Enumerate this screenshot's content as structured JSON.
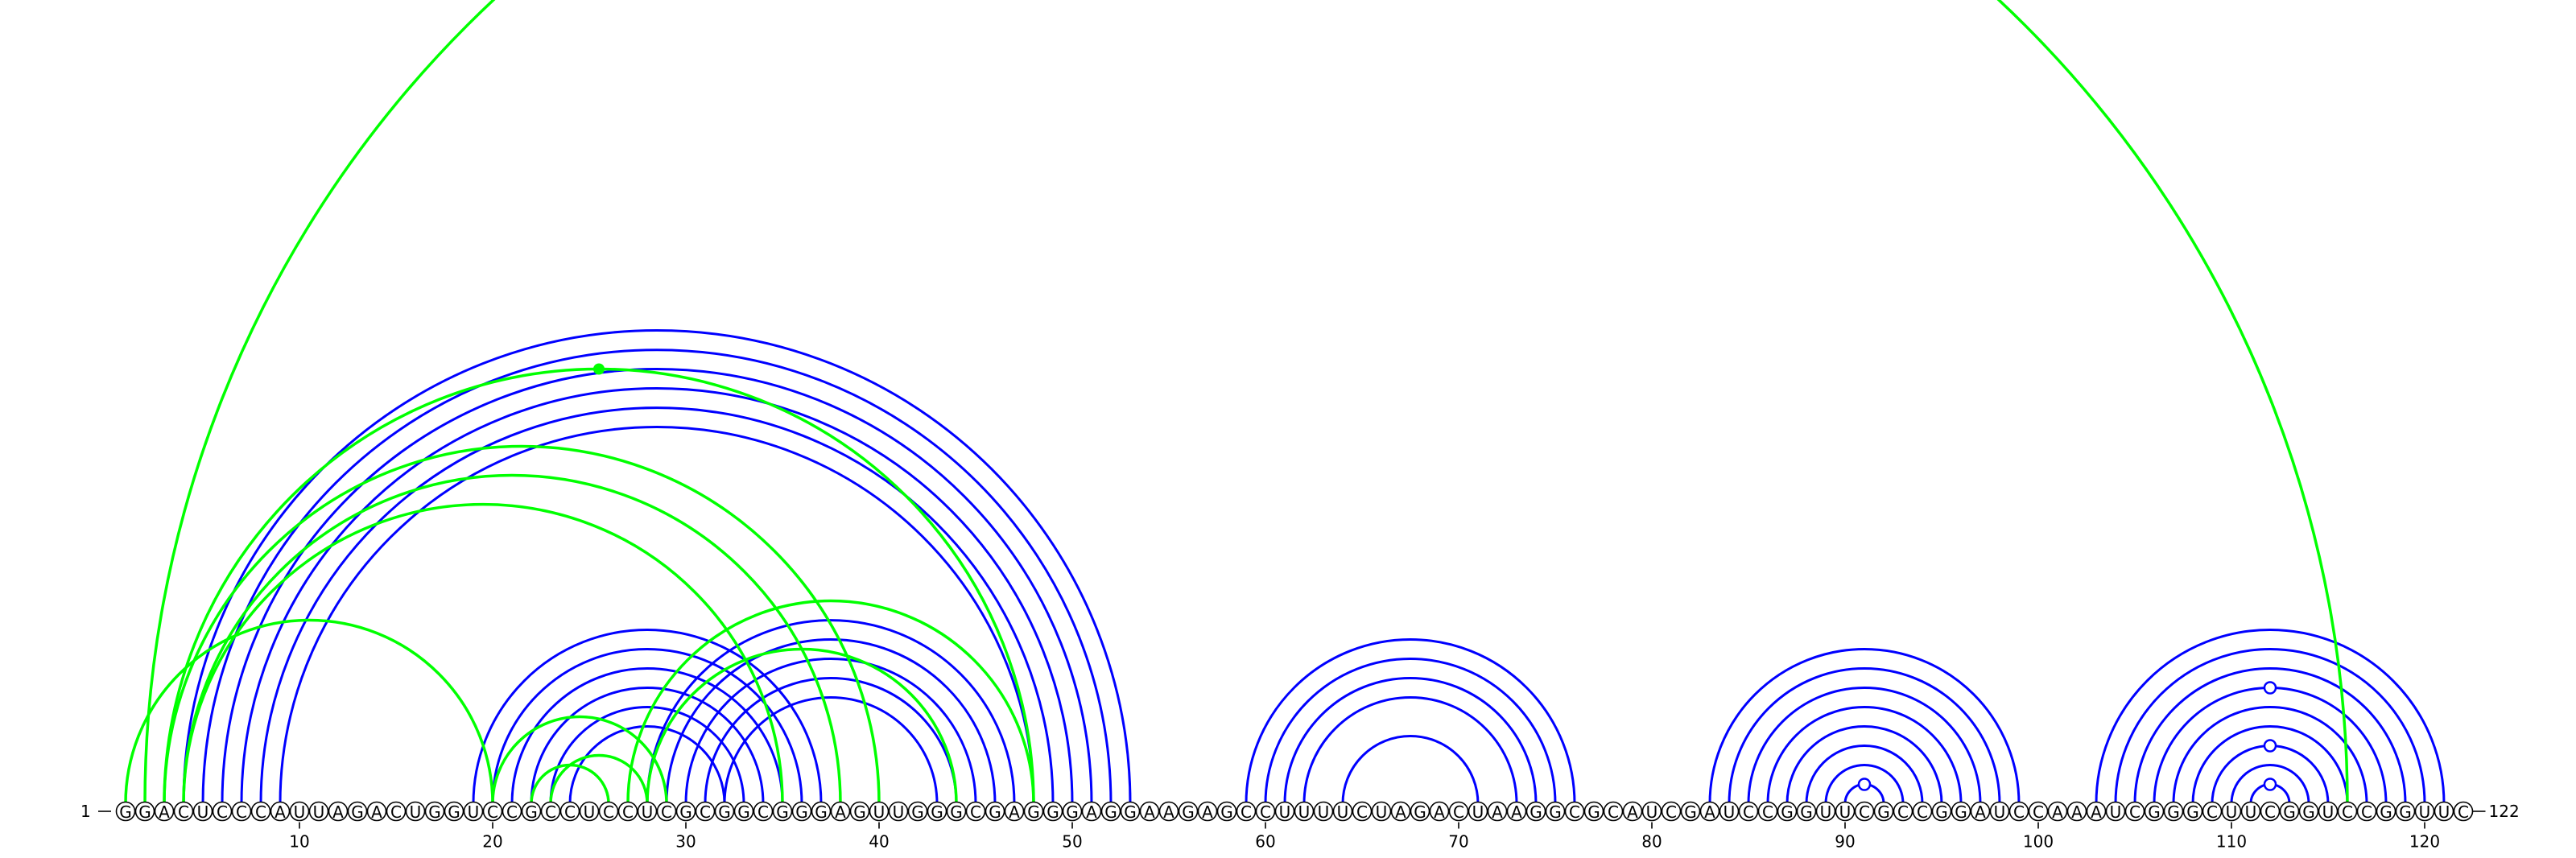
{
  "diagram": {
    "sequence": "GGACUCCCAUUAGACUGGUCCGCCUCCUCGCGGCGGGAGUUGGGCGAGGGAGGAAGAGCCUUUUCUAGACUAAGGCGCAUCGAUCCGGUUCGCCGGAUCCAAAUCGGGCUUCGGUCCGGUUC",
    "start_label": "1",
    "end_label": "122",
    "ticks": [
      10,
      20,
      30,
      40,
      50,
      60,
      70,
      80,
      90,
      100,
      110,
      120
    ],
    "colors": {
      "pair_arc": "#0000ff",
      "alt_arc": "#00ff00",
      "nucleotide_outline": "#000000"
    },
    "blue_pairs": [
      [
        4,
        53
      ],
      [
        5,
        52
      ],
      [
        6,
        51
      ],
      [
        7,
        50
      ],
      [
        8,
        49
      ],
      [
        9,
        48
      ],
      [
        19,
        37
      ],
      [
        20,
        36
      ],
      [
        21,
        35
      ],
      [
        22,
        34
      ],
      [
        23,
        33
      ],
      [
        24,
        32
      ],
      [
        28,
        47
      ],
      [
        29,
        46
      ],
      [
        30,
        45
      ],
      [
        31,
        44
      ],
      [
        32,
        43
      ],
      [
        59,
        76
      ],
      [
        60,
        75
      ],
      [
        61,
        74
      ],
      [
        62,
        73
      ],
      [
        64,
        71
      ],
      [
        83,
        99
      ],
      [
        84,
        98
      ],
      [
        85,
        97
      ],
      [
        86,
        96
      ],
      [
        87,
        95
      ],
      [
        88,
        94
      ],
      [
        89,
        93
      ],
      [
        90,
        92
      ],
      [
        103,
        121
      ],
      [
        104,
        120
      ],
      [
        105,
        119
      ],
      [
        106,
        118
      ],
      [
        107,
        117
      ],
      [
        108,
        116
      ],
      [
        109,
        115
      ],
      [
        110,
        114
      ],
      [
        111,
        113
      ]
    ],
    "green_pairs": [
      [
        2,
        116
      ],
      [
        3,
        48
      ],
      [
        3,
        40
      ],
      [
        4,
        38
      ],
      [
        4,
        35
      ],
      [
        1,
        20
      ],
      [
        20,
        29
      ],
      [
        22,
        26
      ],
      [
        23,
        28
      ],
      [
        27,
        48
      ],
      [
        28,
        44
      ]
    ],
    "marked_positions": [
      91,
      112
    ],
    "green_marked_arcs": [
      [
        3,
        48
      ]
    ],
    "blue_marked_levels": [
      1,
      2
    ]
  }
}
